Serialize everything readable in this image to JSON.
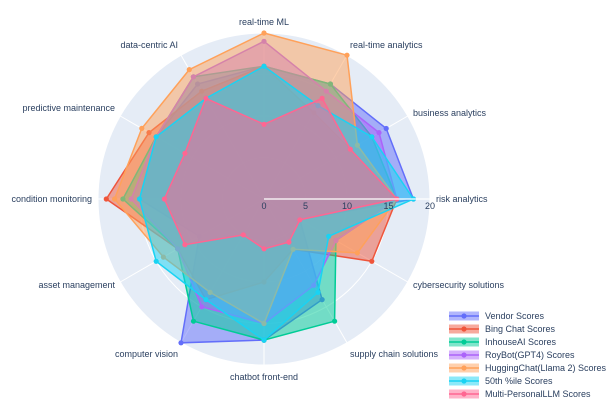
{
  "chart_data": {
    "type": "radar",
    "title": "",
    "axes": [
      "real-time ML",
      "real-time analytics",
      "business analytics",
      "risk analytics",
      "cybersecurity solutions",
      "supply chain solutions",
      "chatbot front-end",
      "computer vision",
      "asset management",
      "condition monitoring",
      "predictive maintenance",
      "data-centric AI"
    ],
    "radial_range": [
      0,
      20
    ],
    "radial_ticks": [
      0,
      5,
      10,
      15,
      20
    ],
    "legend_position": "bottom-right",
    "series": [
      {
        "name": "Vendor Scores",
        "color": "#636efa",
        "values": [
          16,
          16,
          17,
          18,
          5,
          14,
          17,
          20,
          9,
          15,
          15,
          16
        ]
      },
      {
        "name": "Bing Chat Scores",
        "color": "#ef553b",
        "values": [
          16,
          12,
          12,
          16,
          15,
          7,
          10,
          14,
          12,
          19,
          16,
          15
        ]
      },
      {
        "name": "InhouseAI Scores",
        "color": "#00cc96",
        "values": [
          16,
          16,
          15,
          16,
          10,
          17,
          17,
          17,
          12,
          17,
          15,
          17
        ]
      },
      {
        "name": "RoyBot(GPT4) Scores",
        "color": "#ab63fa",
        "values": [
          19,
          15,
          16,
          16,
          10,
          12,
          15,
          15,
          12,
          16,
          15,
          17
        ]
      },
      {
        "name": "HuggingChat(Llama 2) Scores",
        "color": "#ffa15a",
        "values": [
          20,
          20,
          13,
          16,
          13,
          7,
          15,
          13,
          14,
          18,
          17,
          18
        ]
      },
      {
        "name": "50th %ile Scores",
        "color": "#19d3f3",
        "values": [
          16,
          13,
          15,
          18,
          9,
          13,
          17,
          14,
          15,
          15,
          15,
          14
        ]
      },
      {
        "name": "Multi-PersonalLLM Scores",
        "color": "#ff6692",
        "values": [
          9,
          14,
          12,
          16,
          5,
          6,
          6,
          5,
          11,
          12,
          11,
          14
        ]
      }
    ]
  }
}
